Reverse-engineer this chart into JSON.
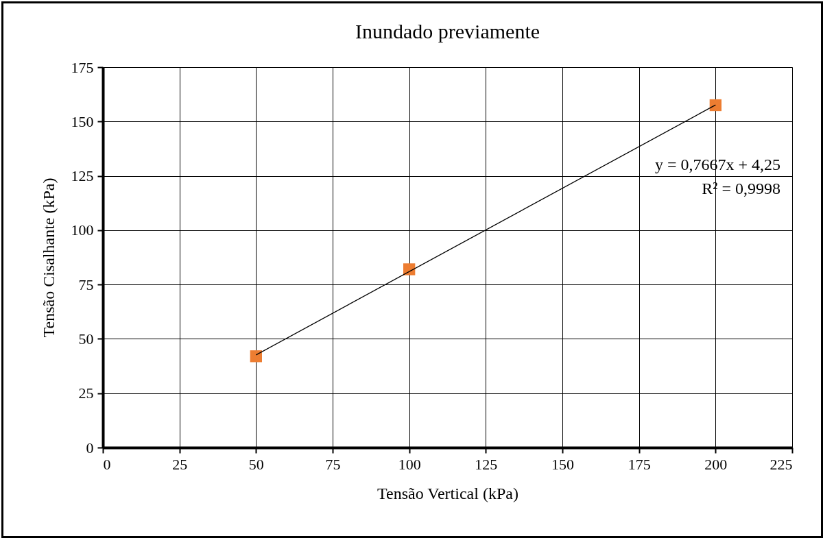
{
  "chart_data": {
    "type": "scatter",
    "title": "Inundado previamente",
    "xlabel": "Tensão Vertical (kPa)",
    "ylabel": "Tensão Cisalhante (kPa)",
    "xlim": [
      0,
      225
    ],
    "xticks": [
      0,
      25,
      50,
      75,
      100,
      125,
      150,
      175,
      200,
      225
    ],
    "ylim": [
      0,
      175
    ],
    "yticks": [
      0,
      25,
      50,
      75,
      100,
      125,
      150,
      175
    ],
    "grid": true,
    "marker": "square",
    "series": [
      {
        "color": "#ed7d31",
        "x": [
          50,
          100,
          200
        ],
        "values": [
          42,
          82,
          157.5
        ]
      },
      {
        "type": "line",
        "color": "#000000",
        "marker": "none",
        "x": [
          50,
          200
        ],
        "values": [
          42.6,
          157.6
        ]
      }
    ],
    "annotations": [
      "y = 0,7667x + 4,25",
      "R² = 0,9998"
    ]
  }
}
